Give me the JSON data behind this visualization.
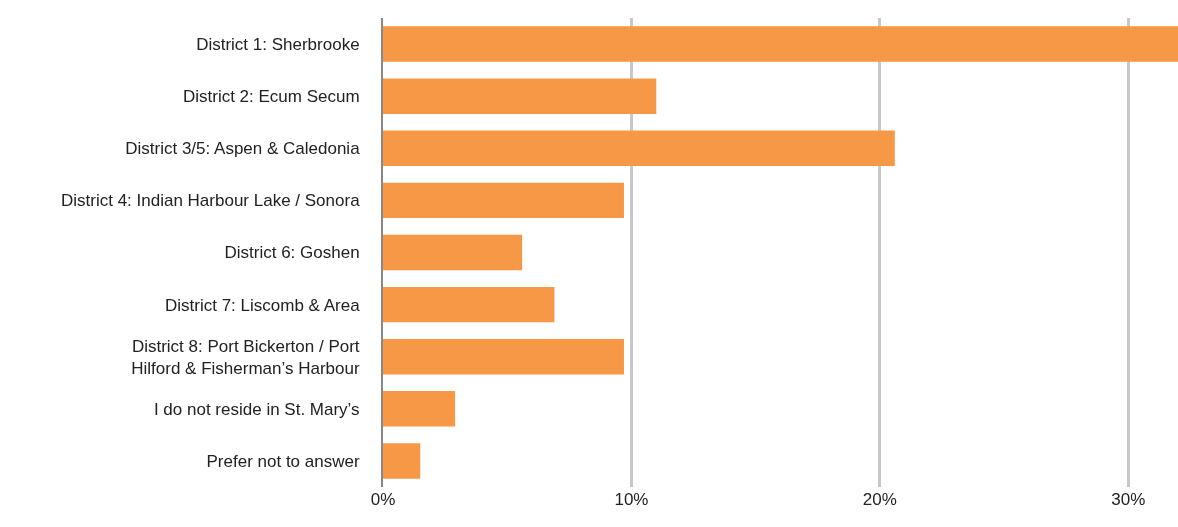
{
  "chart_data": {
    "type": "bar",
    "orientation": "horizontal",
    "categories": [
      "District 1: Sherbrooke",
      "District 2: Ecum Secum",
      "District 3/5: Aspen & Caledonia",
      "District 4: Indian Harbour Lake / Sonora",
      "District 6: Goshen",
      "District 7: Liscomb & Area",
      "District 8: Port Bickerton / Port\nHilford & Fisherman’s Harbour",
      "I do not reside in St. Mary’s",
      "Prefer not to answer"
    ],
    "values": [
      32,
      11.0,
      20.6,
      9.7,
      5.6,
      6.9,
      9.7,
      2.9,
      1.5
    ],
    "color": "#f79846",
    "xlim": [
      0,
      32
    ],
    "xticks": [
      {
        "value": 0,
        "label": "0%"
      },
      {
        "value": 10,
        "label": "10%"
      },
      {
        "value": 20,
        "label": "20%"
      },
      {
        "value": 30,
        "label": "30%"
      }
    ],
    "grid": "x"
  }
}
